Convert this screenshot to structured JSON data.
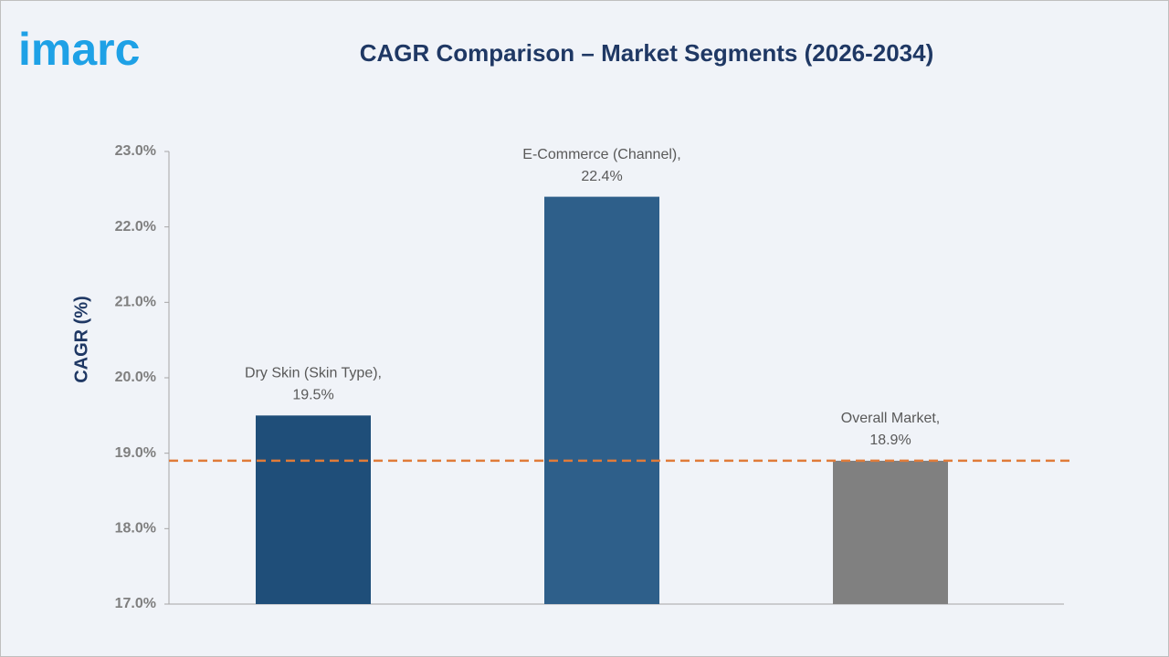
{
  "logo": "imarc",
  "chart_data": {
    "type": "bar",
    "title": "CAGR Comparison – Market Segments (2026-2034)",
    "y_label": "CAGR (%)",
    "categories": [
      "Dry Skin (Skin Type),",
      "E-Commerce (Channel),",
      "Overall Market,"
    ],
    "values": [
      19.5,
      22.4,
      18.9
    ],
    "value_labels": [
      "19.5%",
      "22.4%",
      "18.9%"
    ],
    "colors": [
      "#1f4e79",
      "#2e5f8a",
      "#808080"
    ],
    "reference_line_color": "#e07b39",
    "ylim": [
      17,
      23
    ],
    "yticks": [
      {
        "value": 17,
        "label": "17.0%"
      },
      {
        "value": 18,
        "label": "18.0%"
      },
      {
        "value": 19,
        "label": "19.0%"
      },
      {
        "value": 20,
        "label": "20.0%"
      },
      {
        "value": 21,
        "label": "21.0%"
      },
      {
        "value": 22,
        "label": "22.0%"
      },
      {
        "value": 23,
        "label": "23.0%"
      }
    ]
  }
}
